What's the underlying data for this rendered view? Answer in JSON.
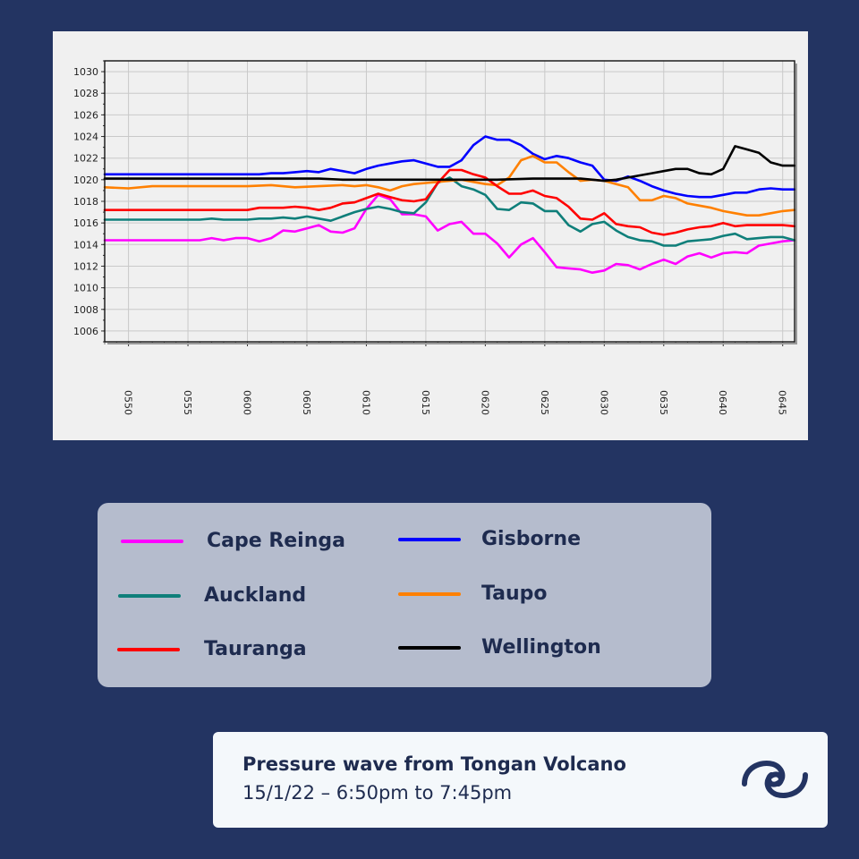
{
  "chart_data": {
    "type": "line",
    "title": "",
    "xlabel": "",
    "ylabel": "",
    "x_ticks": [
      "0550",
      "0555",
      "0600",
      "0605",
      "0610",
      "0615",
      "0620",
      "0625",
      "0630",
      "0635",
      "0640",
      "0645"
    ],
    "y_ticks": [
      "1030",
      "1028",
      "1026",
      "1024",
      "1022",
      "1020",
      "1018",
      "1016",
      "1014",
      "1012",
      "1010",
      "1008",
      "1006"
    ],
    "xlim": [
      0,
      58
    ],
    "ylim": [
      1005,
      1031
    ],
    "grid": true,
    "legend": "below",
    "series": [
      {
        "name": "Cape Reinga",
        "color": "#ff00ff",
        "x": [
          0,
          2,
          4,
          6,
          8,
          9,
          10,
          11,
          12,
          13,
          14,
          15,
          16,
          17,
          18,
          19,
          20,
          21,
          22,
          23,
          24,
          25,
          26,
          27,
          28,
          29,
          30,
          31,
          32,
          33,
          34,
          35,
          36,
          37,
          38,
          39,
          40,
          41,
          42,
          43,
          44,
          45,
          46,
          47,
          48,
          49,
          50,
          51,
          52,
          53,
          54,
          55,
          56,
          57,
          58
        ],
        "y": [
          1014.4,
          1014.4,
          1014.4,
          1014.4,
          1014.4,
          1014.6,
          1014.4,
          1014.6,
          1014.6,
          1014.3,
          1014.6,
          1015.3,
          1015.2,
          1015.5,
          1015.8,
          1015.2,
          1015.1,
          1015.5,
          1017.3,
          1018.6,
          1018.2,
          1016.8,
          1016.8,
          1016.6,
          1015.3,
          1015.9,
          1016.1,
          1015.0,
          1015.0,
          1014.1,
          1012.8,
          1014.0,
          1014.6,
          1013.3,
          1011.9,
          1011.8,
          1011.7,
          1011.4,
          1011.6,
          1012.2,
          1012.1,
          1011.7,
          1012.2,
          1012.6,
          1012.2,
          1012.9,
          1013.2,
          1012.8,
          1013.2,
          1013.3,
          1013.2,
          1013.9,
          1014.1,
          1014.3,
          1014.4
        ]
      },
      {
        "name": "Gisborne",
        "color": "#0000ff",
        "x": [
          0,
          5,
          10,
          13,
          14,
          15,
          16,
          17,
          18,
          19,
          20,
          21,
          22,
          23,
          24,
          25,
          26,
          27,
          28,
          29,
          30,
          31,
          32,
          33,
          34,
          35,
          36,
          37,
          38,
          39,
          40,
          41,
          42,
          43,
          44,
          45,
          46,
          47,
          48,
          49,
          50,
          51,
          52,
          53,
          54,
          55,
          56,
          57,
          58
        ],
        "y": [
          1020.5,
          1020.5,
          1020.5,
          1020.5,
          1020.6,
          1020.6,
          1020.7,
          1020.8,
          1020.7,
          1021.0,
          1020.8,
          1020.6,
          1021.0,
          1021.3,
          1021.5,
          1021.7,
          1021.8,
          1021.5,
          1021.2,
          1021.2,
          1021.8,
          1023.2,
          1024.0,
          1023.7,
          1023.7,
          1023.2,
          1022.4,
          1021.9,
          1022.2,
          1022.0,
          1021.6,
          1021.3,
          1020.0,
          1019.9,
          1020.3,
          1019.9,
          1019.4,
          1019.0,
          1018.7,
          1018.5,
          1018.4,
          1018.4,
          1018.6,
          1018.8,
          1018.8,
          1019.1,
          1019.2,
          1019.1,
          1019.1
        ]
      },
      {
        "name": "Auckland",
        "color": "#0f7f7a",
        "x": [
          0,
          2,
          4,
          6,
          8,
          9,
          10,
          11,
          12,
          13,
          14,
          15,
          16,
          17,
          18,
          19,
          20,
          21,
          22,
          23,
          24,
          25,
          26,
          27,
          28,
          29,
          30,
          31,
          32,
          33,
          34,
          35,
          36,
          37,
          38,
          39,
          40,
          41,
          42,
          43,
          44,
          45,
          46,
          47,
          48,
          49,
          50,
          51,
          52,
          53,
          54,
          55,
          56,
          57,
          58
        ],
        "y": [
          1016.3,
          1016.3,
          1016.3,
          1016.3,
          1016.3,
          1016.4,
          1016.3,
          1016.3,
          1016.3,
          1016.4,
          1016.4,
          1016.5,
          1016.4,
          1016.6,
          1016.4,
          1016.2,
          1016.6,
          1017.0,
          1017.3,
          1017.5,
          1017.3,
          1017.0,
          1016.9,
          1017.9,
          1019.7,
          1020.2,
          1019.4,
          1019.1,
          1018.6,
          1017.3,
          1017.2,
          1017.9,
          1017.8,
          1017.1,
          1017.1,
          1015.8,
          1015.2,
          1015.9,
          1016.1,
          1015.3,
          1014.7,
          1014.4,
          1014.3,
          1013.9,
          1013.9,
          1014.3,
          1014.4,
          1014.5,
          1014.8,
          1015.0,
          1014.5,
          1014.6,
          1014.7,
          1014.7,
          1014.4
        ]
      },
      {
        "name": "Taupo",
        "color": "#ff8000",
        "x": [
          0,
          2,
          4,
          6,
          8,
          10,
          12,
          14,
          16,
          18,
          20,
          21,
          22,
          23,
          24,
          25,
          26,
          27,
          28,
          29,
          30,
          31,
          32,
          33,
          34,
          35,
          36,
          37,
          38,
          39,
          40,
          41,
          42,
          43,
          44,
          45,
          46,
          47,
          48,
          49,
          50,
          51,
          52,
          53,
          54,
          55,
          56,
          57,
          58
        ],
        "y": [
          1019.3,
          1019.2,
          1019.4,
          1019.4,
          1019.4,
          1019.4,
          1019.4,
          1019.5,
          1019.3,
          1019.4,
          1019.5,
          1019.4,
          1019.5,
          1019.3,
          1019.0,
          1019.4,
          1019.6,
          1019.7,
          1019.8,
          1019.9,
          1020.0,
          1019.8,
          1019.6,
          1019.5,
          1020.2,
          1021.8,
          1022.2,
          1021.6,
          1021.6,
          1020.7,
          1019.9,
          1020.0,
          1019.9,
          1019.6,
          1019.3,
          1018.1,
          1018.1,
          1018.5,
          1018.3,
          1017.8,
          1017.6,
          1017.4,
          1017.1,
          1016.9,
          1016.7,
          1016.7,
          1016.9,
          1017.1,
          1017.2
        ]
      },
      {
        "name": "Tauranga",
        "color": "#ff0000",
        "x": [
          0,
          3,
          6,
          9,
          12,
          13,
          14,
          15,
          16,
          17,
          18,
          19,
          20,
          21,
          22,
          23,
          24,
          25,
          26,
          27,
          28,
          29,
          30,
          31,
          32,
          33,
          34,
          35,
          36,
          37,
          38,
          39,
          40,
          41,
          42,
          43,
          44,
          45,
          46,
          47,
          48,
          49,
          50,
          51,
          52,
          53,
          54,
          55,
          56,
          57,
          58
        ],
        "y": [
          1017.2,
          1017.2,
          1017.2,
          1017.2,
          1017.2,
          1017.4,
          1017.4,
          1017.4,
          1017.5,
          1017.4,
          1017.2,
          1017.4,
          1017.8,
          1017.9,
          1018.3,
          1018.7,
          1018.4,
          1018.1,
          1018.0,
          1018.2,
          1019.7,
          1020.9,
          1020.9,
          1020.5,
          1020.2,
          1019.4,
          1018.7,
          1018.7,
          1019.0,
          1018.5,
          1018.3,
          1017.5,
          1016.4,
          1016.3,
          1016.9,
          1015.9,
          1015.7,
          1015.6,
          1015.1,
          1014.9,
          1015.1,
          1015.4,
          1015.6,
          1015.7,
          1016.0,
          1015.7,
          1015.8,
          1015.8,
          1015.8,
          1015.8,
          1015.7
        ]
      },
      {
        "name": "Wellington",
        "color": "#000000",
        "x": [
          0,
          5,
          10,
          15,
          18,
          20,
          25,
          30,
          33,
          36,
          38,
          40,
          42,
          43,
          44,
          45,
          46,
          47,
          48,
          49,
          50,
          51,
          52,
          53,
          54,
          55,
          56,
          57,
          58
        ],
        "y": [
          1020.1,
          1020.1,
          1020.1,
          1020.1,
          1020.1,
          1020.0,
          1020.0,
          1020.0,
          1020.0,
          1020.1,
          1020.1,
          1020.1,
          1019.9,
          1020.0,
          1020.2,
          1020.4,
          1020.6,
          1020.8,
          1021.0,
          1021.0,
          1020.6,
          1020.5,
          1021.0,
          1023.1,
          1022.8,
          1022.5,
          1021.6,
          1021.3,
          1021.3
        ]
      }
    ]
  },
  "legend": {
    "items": [
      {
        "label": "Cape Reinga",
        "color": "#ff00ff"
      },
      {
        "label": "Auckland",
        "color": "#0f7f7a"
      },
      {
        "label": "Tauranga",
        "color": "#ff0000"
      },
      {
        "label": "Gisborne",
        "color": "#0000ff"
      },
      {
        "label": "Taupo",
        "color": "#ff8000"
      },
      {
        "label": "Wellington",
        "color": "#000000"
      }
    ]
  },
  "caption": {
    "title": "Pressure wave from Tongan Volcano",
    "subtitle": "15/1/22 – 6:50pm to 7:45pm",
    "logo_icon": "wave-swirl-icon"
  }
}
